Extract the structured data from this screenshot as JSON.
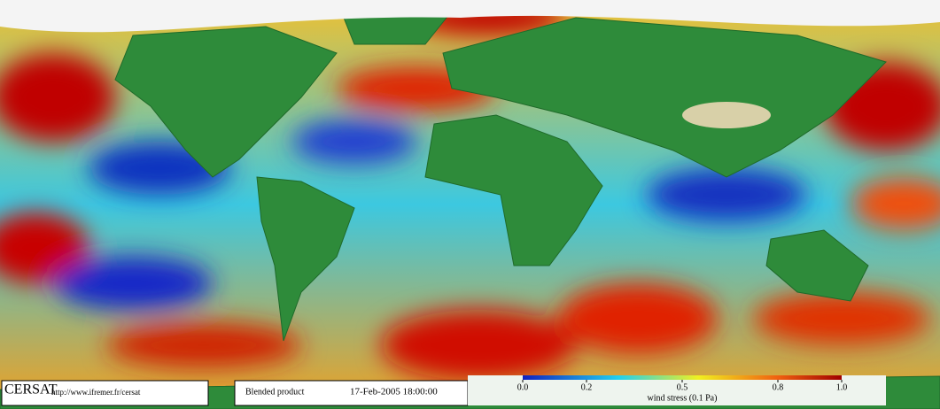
{
  "header": {
    "logo": "CERSAT",
    "url": "http://www.ifremer.fr/cersat",
    "product": "Blended product",
    "datetime": "17-Feb-2005 18:00:00"
  },
  "colorbar": {
    "label": "wind stress (0.1 Pa)",
    "ticks": [
      {
        "value": 0,
        "label": "0.0"
      },
      0.2,
      0.5,
      0.8,
      {
        "value": 1,
        "label": "1.0"
      }
    ]
  }
}
